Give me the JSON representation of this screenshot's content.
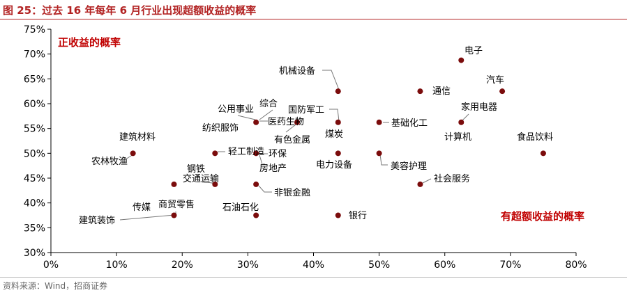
{
  "figure": {
    "title": "图 25：过去 16 年每年 6 月行业出现超额收益的概率",
    "source": "资料来源：Wind，招商证券"
  },
  "colors": {
    "accent": "#b22222",
    "point": "#7b0c0c",
    "annotation": "#c00000"
  },
  "chart_data": {
    "type": "scatter",
    "title": "",
    "xlabel": "",
    "ylabel": "",
    "xlim": [
      0,
      0.8
    ],
    "ylim": [
      0.3,
      0.75
    ],
    "x_ticks": [
      "0%",
      "10%",
      "20%",
      "30%",
      "40%",
      "50%",
      "60%",
      "70%",
      "80%"
    ],
    "y_ticks": [
      "30%",
      "35%",
      "40%",
      "45%",
      "50%",
      "55%",
      "60%",
      "65%",
      "70%",
      "75%"
    ],
    "grid": false,
    "annotations": [
      "正收益的概率",
      "有超额收益的概率"
    ],
    "points": [
      {
        "label": "电子",
        "x": 0.625,
        "y": 0.6875
      },
      {
        "label": "汽车",
        "x": 0.6875,
        "y": 0.625
      },
      {
        "label": "通信",
        "x": 0.5625,
        "y": 0.625
      },
      {
        "label": "机械设备",
        "x": 0.4375,
        "y": 0.625
      },
      {
        "label": "家用电器",
        "x": 0.625,
        "y": 0.5625
      },
      {
        "label": "计算机",
        "x": 0.625,
        "y": 0.5625
      },
      {
        "label": "基础化工",
        "x": 0.5,
        "y": 0.5625
      },
      {
        "label": "国防军工",
        "x": 0.4375,
        "y": 0.5625
      },
      {
        "label": "煤炭",
        "x": 0.4375,
        "y": 0.5625
      },
      {
        "label": "食品饮料",
        "x": 0.75,
        "y": 0.5
      },
      {
        "label": "美容护理",
        "x": 0.5,
        "y": 0.5
      },
      {
        "label": "电力设备",
        "x": 0.4375,
        "y": 0.5
      },
      {
        "label": "综合",
        "x": 0.3125,
        "y": 0.5625
      },
      {
        "label": "公用事业",
        "x": 0.3125,
        "y": 0.5625
      },
      {
        "label": "纺织服饰",
        "x": 0.3125,
        "y": 0.5625
      },
      {
        "label": "医药生物",
        "x": 0.375,
        "y": 0.5625
      },
      {
        "label": "有色金属",
        "x": 0.375,
        "y": 0.5625
      },
      {
        "label": "建筑材料",
        "x": 0.125,
        "y": 0.5
      },
      {
        "label": "农林牧渔",
        "x": 0.125,
        "y": 0.5
      },
      {
        "label": "轻工制造",
        "x": 0.25,
        "y": 0.5
      },
      {
        "label": "环保",
        "x": 0.3125,
        "y": 0.5
      },
      {
        "label": "房地产",
        "x": 0.3125,
        "y": 0.5
      },
      {
        "label": "社会服务",
        "x": 0.5625,
        "y": 0.4375
      },
      {
        "label": "钢铁",
        "x": 0.1875,
        "y": 0.4375
      },
      {
        "label": "交通运输",
        "x": 0.25,
        "y": 0.4375
      },
      {
        "label": "非银金融",
        "x": 0.3125,
        "y": 0.4375
      },
      {
        "label": "银行",
        "x": 0.4375,
        "y": 0.375
      },
      {
        "label": "石油石化",
        "x": 0.3125,
        "y": 0.375
      },
      {
        "label": "传媒",
        "x": 0.1875,
        "y": 0.375
      },
      {
        "label": "商贸零售",
        "x": 0.1875,
        "y": 0.375
      },
      {
        "label": "建筑装饰",
        "x": 0.1875,
        "y": 0.375
      }
    ]
  }
}
